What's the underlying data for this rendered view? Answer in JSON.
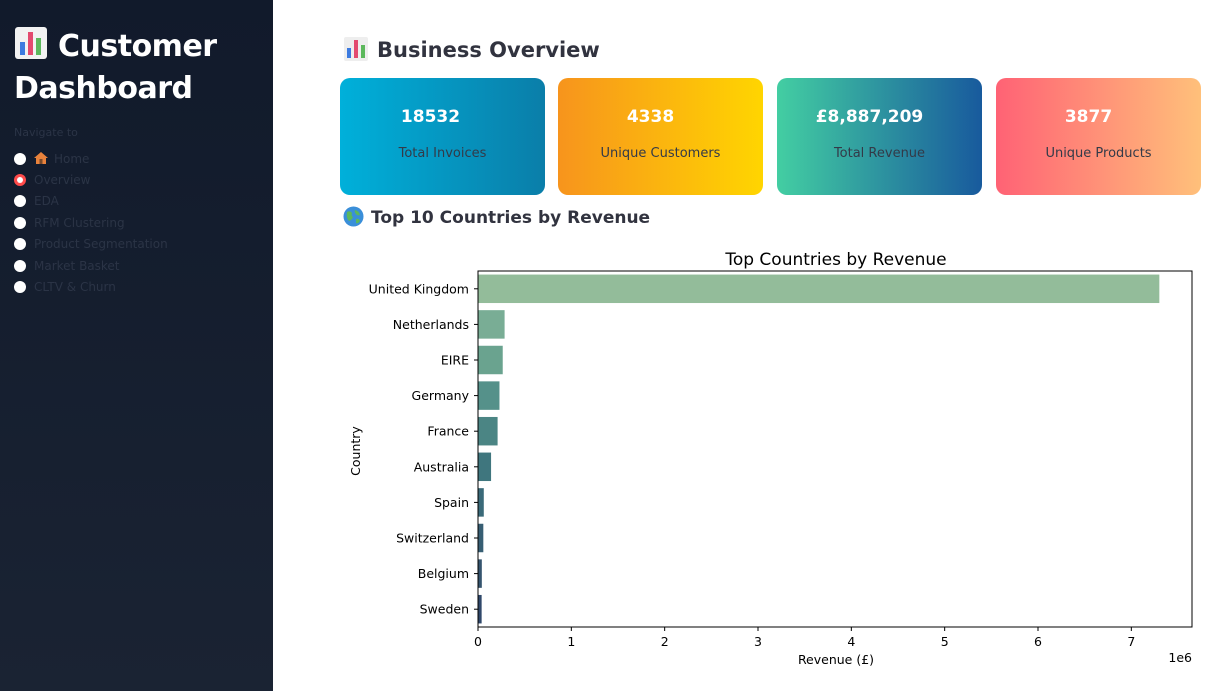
{
  "sidebar": {
    "title": "Customer Dashboard",
    "nav_label": "Navigate to",
    "items": [
      {
        "label": "Home",
        "icon": "house-icon",
        "selected": false
      },
      {
        "label": "Overview",
        "selected": true
      },
      {
        "label": "EDA",
        "selected": false
      },
      {
        "label": "RFM Clustering",
        "selected": false
      },
      {
        "label": "Product Segmentation",
        "selected": false
      },
      {
        "label": "Market Basket",
        "selected": false
      },
      {
        "label": "CLTV & Churn",
        "selected": false
      }
    ],
    "selected_color": "#ff4b4b"
  },
  "main": {
    "overview_title": "Business Overview",
    "countries_title": "Top 10 Countries by Revenue",
    "cards": [
      {
        "value": "18532",
        "label": "Total Invoices"
      },
      {
        "value": "4338",
        "label": "Unique Customers"
      },
      {
        "value": "£8,887,209",
        "label": "Total Revenue"
      },
      {
        "value": "3877",
        "label": "Unique Products"
      }
    ]
  },
  "chart_data": {
    "type": "bar",
    "orientation": "horizontal",
    "title": "Top Countries by Revenue",
    "xlabel": "Revenue (£)",
    "ylabel": "Country",
    "x_scale_label": "1e6",
    "xlim": [
      0,
      7.65
    ],
    "xticks": [
      0,
      1,
      2,
      3,
      4,
      5,
      6,
      7
    ],
    "categories": [
      "United Kingdom",
      "Netherlands",
      "EIRE",
      "Germany",
      "France",
      "Australia",
      "Spain",
      "Switzerland",
      "Belgium",
      "Sweden"
    ],
    "values": [
      7.3,
      0.285,
      0.265,
      0.23,
      0.21,
      0.14,
      0.062,
      0.057,
      0.041,
      0.039
    ],
    "colors": [
      "#93bc9a",
      "#79ad95",
      "#6aa38f",
      "#55918a",
      "#4b8584",
      "#3f767e",
      "#3a6a79",
      "#375e73",
      "#35546e",
      "#30486a"
    ],
    "grid": false
  }
}
